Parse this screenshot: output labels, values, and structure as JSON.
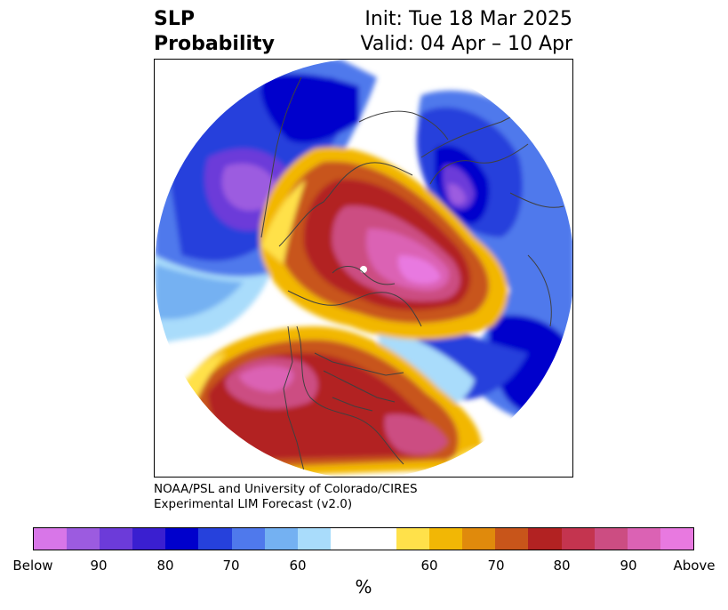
{
  "header": {
    "title_line1": "SLP",
    "title_line2": "Probability",
    "init": "Init: Tue 18 Mar 2025",
    "valid": "Valid: 04 Apr – 10 Apr"
  },
  "credit": {
    "line1": "NOAA/PSL and University of Colorado/CIRES",
    "line2": "Experimental LIM Forecast (v2.0)"
  },
  "colorbar": {
    "colors": [
      "#d876e8",
      "#9c5be0",
      "#6c3bd9",
      "#3a1fd0",
      "#0000cc",
      "#2641dc",
      "#4f79ec",
      "#74b1f2",
      "#a9dcfb",
      "#ffffff",
      "#ffffff",
      "#ffe14a",
      "#f2b705",
      "#e08a0c",
      "#c8551a",
      "#b22222",
      "#c4344f",
      "#cc4d82",
      "#db62b4",
      "#e879e0"
    ],
    "labels": [
      "Below",
      "90",
      "80",
      "70",
      "60",
      "60",
      "70",
      "80",
      "90",
      "Above"
    ],
    "unit": "%"
  },
  "map": {
    "region": "Northern Hemisphere polar stereographic",
    "colors": {
      "deep_blue": "#0000cc",
      "blue": "#2641dc",
      "light_blue": "#74b1f2",
      "pale_blue": "#a9dcfb",
      "purple": "#9c5be0",
      "yellow": "#ffe14a",
      "orange": "#f2b705",
      "dark_orange": "#c8551a",
      "red": "#b22222",
      "rose": "#cc4d82",
      "magenta": "#e879e0"
    }
  }
}
